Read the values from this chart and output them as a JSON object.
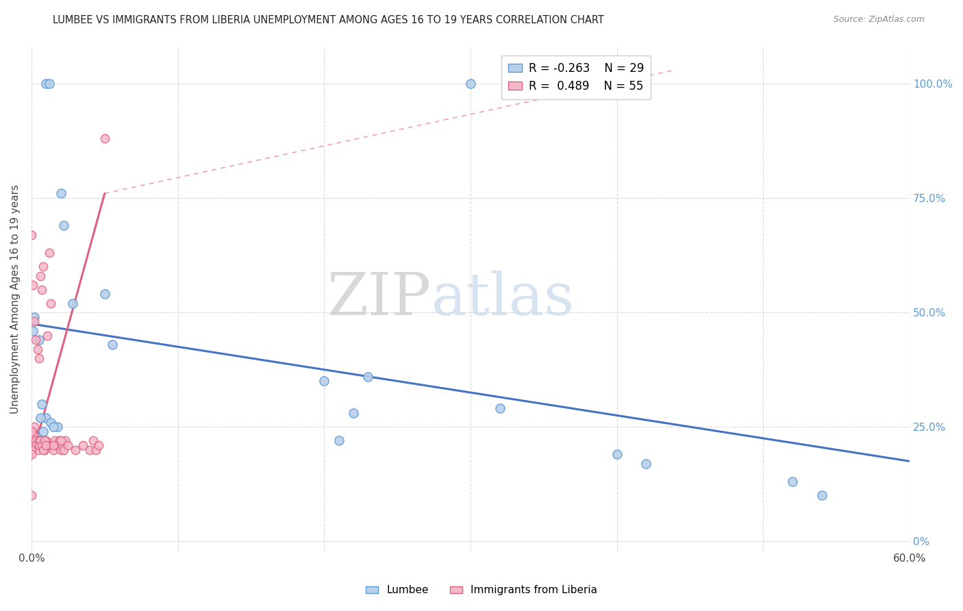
{
  "title": "LUMBEE VS IMMIGRANTS FROM LIBERIA UNEMPLOYMENT AMONG AGES 16 TO 19 YEARS CORRELATION CHART",
  "source": "Source: ZipAtlas.com",
  "ylabel": "Unemployment Among Ages 16 to 19 years",
  "xlim": [
    0,
    0.6
  ],
  "ylim": [
    -0.02,
    1.08
  ],
  "legend_R1": "R = -0.263",
  "legend_N1": "N = 29",
  "legend_R2": "R =  0.489",
  "legend_N2": "N = 55",
  "color_lumbee_fill": "#b8d0ea",
  "color_lumbee_edge": "#5b9bd5",
  "color_liberia_fill": "#f5b8c8",
  "color_liberia_edge": "#e06080",
  "color_line_lumbee": "#4472c4",
  "color_line_liberia": "#e06080",
  "lumbee_x": [
    0.01,
    0.012,
    0.3,
    0.001,
    0.002,
    0.005,
    0.007,
    0.01,
    0.013,
    0.018,
    0.02,
    0.022,
    0.028,
    0.05,
    0.055,
    0.2,
    0.21,
    0.22,
    0.23,
    0.32,
    0.4,
    0.42,
    0.52,
    0.54,
    0.001,
    0.003,
    0.006,
    0.008,
    0.015
  ],
  "lumbee_y": [
    1.0,
    1.0,
    1.0,
    0.46,
    0.49,
    0.44,
    0.3,
    0.27,
    0.26,
    0.25,
    0.76,
    0.69,
    0.52,
    0.54,
    0.43,
    0.35,
    0.22,
    0.28,
    0.36,
    0.29,
    0.19,
    0.17,
    0.13,
    0.1,
    0.24,
    0.23,
    0.27,
    0.24,
    0.25
  ],
  "liberia_x": [
    0.001,
    0.001,
    0.001,
    0.002,
    0.002,
    0.003,
    0.003,
    0.004,
    0.005,
    0.005,
    0.006,
    0.007,
    0.008,
    0.009,
    0.009,
    0.01,
    0.01,
    0.011,
    0.012,
    0.013,
    0.014,
    0.015,
    0.016,
    0.017,
    0.018,
    0.019,
    0.02,
    0.021,
    0.022,
    0.023,
    0.0,
    0.0,
    0.0,
    0.0,
    0.0,
    0.001,
    0.002,
    0.003,
    0.004,
    0.005,
    0.006,
    0.007,
    0.008,
    0.009,
    0.01,
    0.015,
    0.02,
    0.025,
    0.03,
    0.035,
    0.04,
    0.042,
    0.044,
    0.046,
    0.05
  ],
  "liberia_y": [
    0.24,
    0.23,
    0.22,
    0.25,
    0.23,
    0.22,
    0.21,
    0.2,
    0.22,
    0.21,
    0.58,
    0.55,
    0.6,
    0.21,
    0.2,
    0.22,
    0.21,
    0.45,
    0.63,
    0.52,
    0.21,
    0.2,
    0.22,
    0.21,
    0.21,
    0.22,
    0.2,
    0.21,
    0.2,
    0.22,
    0.67,
    0.24,
    0.2,
    0.19,
    0.1,
    0.56,
    0.48,
    0.44,
    0.42,
    0.4,
    0.22,
    0.21,
    0.2,
    0.22,
    0.21,
    0.21,
    0.22,
    0.21,
    0.2,
    0.21,
    0.2,
    0.22,
    0.2,
    0.21,
    0.88
  ],
  "lumbee_trendline": [
    0.0,
    0.6,
    0.475,
    0.175
  ],
  "liberia_trendline_solid": [
    0.0,
    0.05,
    0.18,
    0.76
  ],
  "liberia_trendline_dashed": [
    0.05,
    0.44,
    0.76,
    1.03
  ]
}
